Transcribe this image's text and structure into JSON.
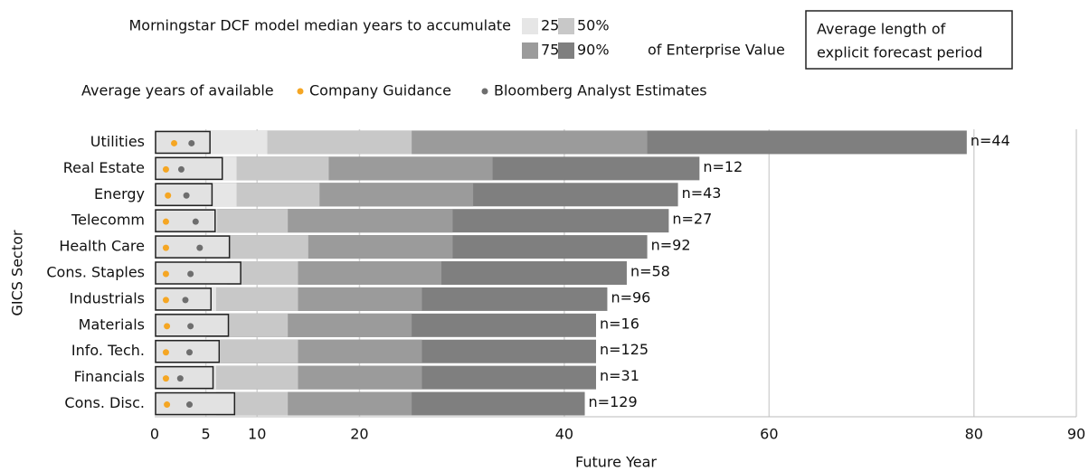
{
  "chart_data": {
    "type": "bar",
    "orientation": "horizontal",
    "legend_title": "Morningstar DCF model median years to accumulate",
    "legend_suffix": "of Enterprise Value",
    "box_legend": [
      "Average length of",
      "explicit forecast period"
    ],
    "dots_legend_title": "Average years of available",
    "xlabel": "Future Year",
    "ylabel": "GICS Sector",
    "categories": [
      "Utilities",
      "Real Estate",
      "Energy",
      "Telecomm",
      "Health Care",
      "Cons. Staples",
      "Industrials",
      "Materials",
      "Info. Tech.",
      "Financials",
      "Cons. Disc."
    ],
    "series": [
      {
        "name": "25%",
        "color": "#e6e6e6",
        "values": [
          11.0,
          8.0,
          8.0,
          6.1,
          7.3,
          7.1,
          6.0,
          5.0,
          6.4,
          6.0,
          6.0
        ]
      },
      {
        "name": "50%",
        "color": "#c8c8c8",
        "values": [
          25.1,
          17.0,
          16.1,
          13.0,
          15.0,
          14.0,
          14.0,
          13.0,
          14.0,
          14.0,
          13.0
        ]
      },
      {
        "name": "75%",
        "color": "#9b9b9b",
        "values": [
          48.1,
          33.0,
          31.1,
          29.1,
          29.1,
          28.0,
          26.1,
          25.1,
          26.1,
          26.1,
          25.1
        ]
      },
      {
        "name": "90%",
        "color": "#7f7f7f",
        "values": [
          79.3,
          53.2,
          51.1,
          50.2,
          48.1,
          46.1,
          44.2,
          43.1,
          43.1,
          43.1,
          42.0
        ]
      }
    ],
    "forecast_box": {
      "color": "#e2e2e2",
      "values": [
        5.4,
        6.6,
        5.6,
        5.9,
        7.3,
        8.4,
        5.5,
        7.2,
        6.3,
        5.7,
        7.8
      ]
    },
    "dots": [
      {
        "name": "Company Guidance",
        "color": "#f5a623",
        "values": [
          1.9,
          1.1,
          1.3,
          1.1,
          1.1,
          1.1,
          1.1,
          1.2,
          1.1,
          1.1,
          1.2
        ]
      },
      {
        "name": "Bloomberg Analyst Estimates",
        "color": "#6e6e6e",
        "values": [
          3.6,
          2.6,
          3.1,
          4.0,
          4.4,
          3.5,
          3.0,
          3.5,
          3.4,
          2.5,
          3.4
        ]
      }
    ],
    "n_labels": [
      "n=44",
      "n=12",
      "n=43",
      "n=27",
      "n=92",
      "n=58",
      "n=96",
      "n=16",
      "n=125",
      "n=31",
      "n=129"
    ],
    "xlim": [
      0,
      90
    ],
    "xticks": [
      0,
      5,
      10,
      20,
      40,
      60,
      80,
      90
    ],
    "grid": true
  }
}
